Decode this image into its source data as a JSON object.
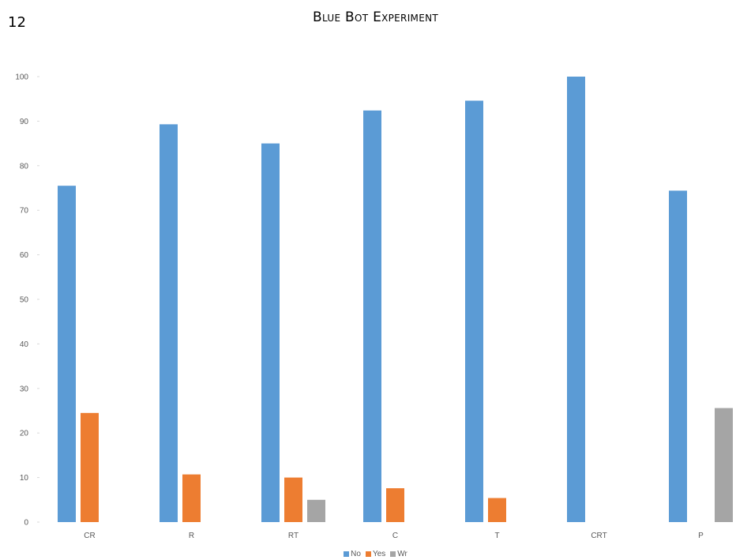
{
  "page_number": "12",
  "chart_data": {
    "type": "bar",
    "title": "Blue Bot Experiment",
    "categories": [
      "CR",
      "R",
      "RT",
      "C",
      "T",
      "CRT",
      "P"
    ],
    "series": [
      {
        "name": "No",
        "color": "#5b9bd5",
        "values": [
          75.5,
          89.3,
          85,
          92.4,
          94.6,
          100,
          74.4
        ]
      },
      {
        "name": "Yes",
        "color": "#ed7d31",
        "values": [
          24.5,
          10.7,
          10,
          7.6,
          5.4,
          null,
          null
        ]
      },
      {
        "name": "Wr",
        "color": "#a5a5a5",
        "values": [
          null,
          null,
          5,
          null,
          null,
          null,
          25.6
        ]
      }
    ],
    "yticks": [
      "0",
      "10",
      "20",
      "30",
      "40",
      "50",
      "60",
      "70",
      "80",
      "90",
      "100"
    ],
    "ylim": [
      0,
      100
    ],
    "grid": false,
    "legend_position": "bottom"
  }
}
